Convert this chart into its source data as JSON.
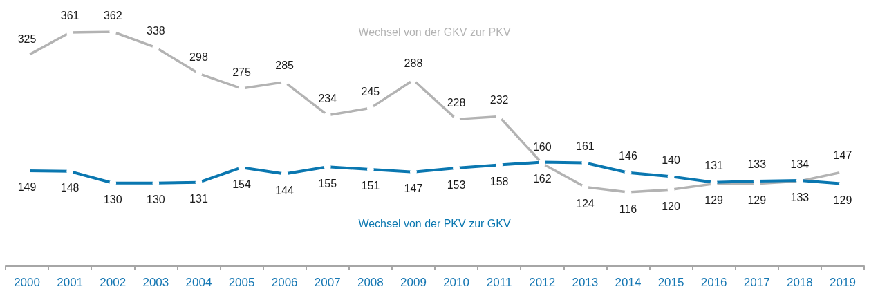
{
  "chart_data": {
    "type": "line",
    "categories": [
      "2000",
      "2001",
      "2002",
      "2003",
      "2004",
      "2005",
      "2006",
      "2007",
      "2008",
      "2009",
      "2010",
      "2011",
      "2012",
      "2013",
      "2014",
      "2015",
      "2016",
      "2017",
      "2018",
      "2019"
    ],
    "series": [
      {
        "name": "Wechsel von der GKV zur PKV",
        "color": "#b3b3b3",
        "values": [
          325,
          361,
          362,
          338,
          298,
          275,
          285,
          234,
          245,
          288,
          228,
          232,
          160,
          124,
          116,
          120,
          129,
          129,
          133,
          147
        ]
      },
      {
        "name": "Wechsel von der PKV zur GKV",
        "color": "#0a77b0",
        "values": [
          149,
          148,
          130,
          130,
          131,
          154,
          144,
          155,
          151,
          147,
          153,
          158,
          162,
          161,
          146,
          140,
          131,
          133,
          134,
          129
        ]
      }
    ],
    "data_labels": true,
    "marker": "circle",
    "line_style": "solid"
  }
}
